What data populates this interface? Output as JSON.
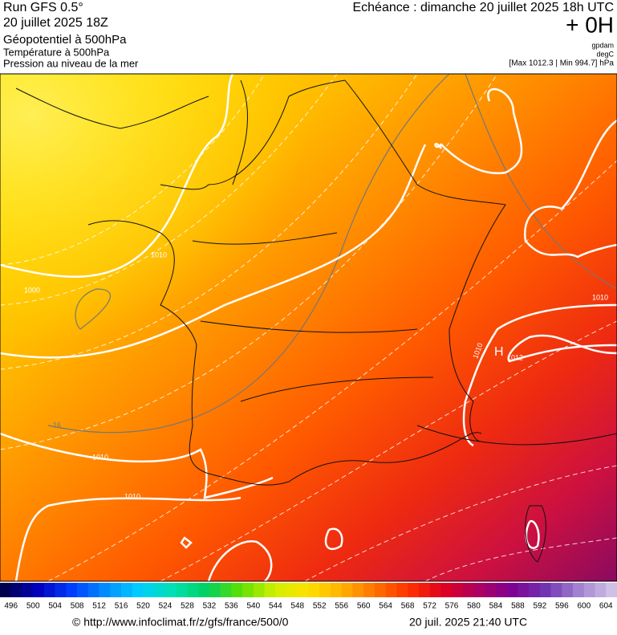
{
  "header": {
    "title_lines": [
      "Run GFS 0.5°",
      "20 juillet 2025 18Z",
      "Géopotentiel à 500hPa",
      "Température à 500hPa",
      "Pression au niveau de la mer"
    ],
    "echeance": "Echéance : dimanche 20 juillet 2025 18h UTC",
    "offset": "+ 0H",
    "units": [
      "gpdam",
      "degC"
    ],
    "extremes": "[Max 1012.3 | Min 994.7] hPa"
  },
  "map": {
    "contour_labels": [
      "1010",
      "1000",
      "1010",
      "1010",
      "1010",
      "1012",
      "1010",
      "H",
      "16"
    ]
  },
  "colorbar": {
    "labels": [
      496,
      500,
      504,
      508,
      512,
      516,
      520,
      524,
      528,
      532,
      536,
      540,
      544,
      548,
      552,
      556,
      560,
      564,
      568,
      572,
      576,
      580,
      584,
      588,
      592,
      596,
      600,
      604
    ]
  },
  "footer": {
    "source": "© http://www.infoclimat.fr/z/gfs/france/500/0",
    "timestamp": "20 juil. 2025 21:40 UTC"
  }
}
